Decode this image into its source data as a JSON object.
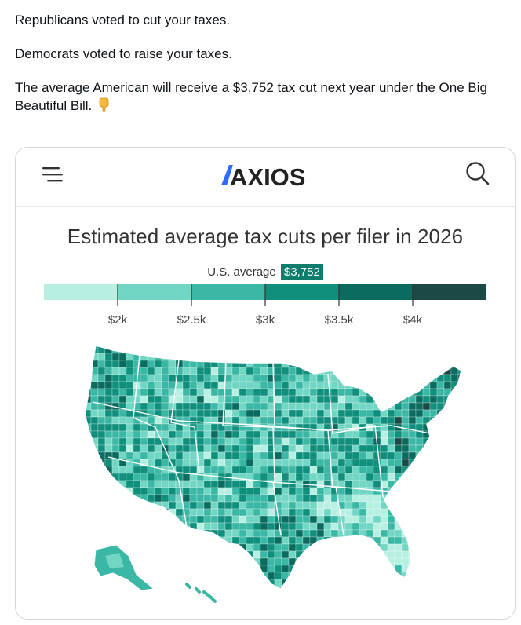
{
  "tweet": {
    "line1": "Republicans voted to cut your taxes.",
    "line2": "Democrats voted to raise your taxes.",
    "line3": "The average American will receive a $3,752 tax cut next year under the One Big Beautiful Bill.",
    "emoji": "backhand-index-pointing-down"
  },
  "card": {
    "brand": "AXIOS",
    "menu_icon": "hamburger-menu-icon",
    "search_icon": "search-icon"
  },
  "chart_data": {
    "type": "choropleth-map",
    "title": "Estimated average tax cuts per filer in 2026",
    "us_average_label": "U.S. average",
    "us_average_value": "$3,752",
    "legend": {
      "ticks": [
        "$2k",
        "$2.5k",
        "$3k",
        "$3.5k",
        "$4k"
      ],
      "colors": [
        "#b7f0e3",
        "#72d6c4",
        "#3bb8a5",
        "#118f7d",
        "#0b6b5f",
        "#1b4a44"
      ]
    }
  }
}
